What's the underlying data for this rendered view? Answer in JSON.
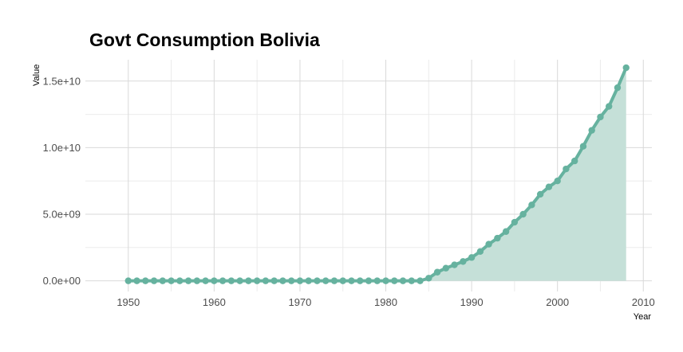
{
  "chart_data": {
    "type": "area",
    "title": "Govt Consumption Bolivia",
    "xlabel": "Year",
    "ylabel": "Value",
    "xlim": [
      1945,
      2011
    ],
    "ylim": [
      -800000000,
      16600000000
    ],
    "x_ticks": [
      1950,
      1960,
      1970,
      1980,
      1990,
      2000,
      2010
    ],
    "x_tick_labels": [
      "1950",
      "1960",
      "1970",
      "1980",
      "1990",
      "2000",
      "2010"
    ],
    "y_ticks": [
      0,
      5000000000,
      10000000000,
      15000000000
    ],
    "y_tick_labels": [
      "0.0e+00",
      "5.0e+09",
      "1.0e+10",
      "1.5e+10"
    ],
    "grid": true,
    "legend": "none",
    "colors": {
      "line": "#66b29f",
      "fill": "#c5e0d8",
      "grid": "#d9d9d9"
    },
    "series": [
      {
        "x": [
          1950,
          1951,
          1952,
          1953,
          1954,
          1955,
          1956,
          1957,
          1958,
          1959,
          1960,
          1961,
          1962,
          1963,
          1964,
          1965,
          1966,
          1967,
          1968,
          1969,
          1970,
          1971,
          1972,
          1973,
          1974,
          1975,
          1976,
          1977,
          1978,
          1979,
          1980,
          1981,
          1982,
          1983,
          1984,
          1985,
          1986,
          1987,
          1988,
          1989,
          1990,
          1991,
          1992,
          1993,
          1994,
          1995,
          1996,
          1997,
          1998,
          1999,
          2000,
          2001,
          2002,
          2003,
          2004,
          2005,
          2006,
          2007,
          2008
        ],
        "values": [
          0,
          0,
          0,
          0,
          0,
          0,
          0,
          0,
          0,
          0,
          0,
          0,
          0,
          0,
          0,
          0,
          0,
          0,
          0,
          0,
          0,
          0,
          0,
          0,
          0,
          0,
          0,
          0,
          0,
          0,
          0,
          0,
          0,
          0,
          0,
          200000000,
          650000000,
          950000000,
          1200000000,
          1450000000,
          1750000000,
          2200000000,
          2750000000,
          3200000000,
          3700000000,
          4400000000,
          5000000000,
          5700000000,
          6500000000,
          7050000000,
          7500000000,
          8400000000,
          9000000000,
          10100000000,
          11300000000,
          12300000000,
          13100000000,
          14500000000,
          16000000000
        ]
      }
    ]
  }
}
